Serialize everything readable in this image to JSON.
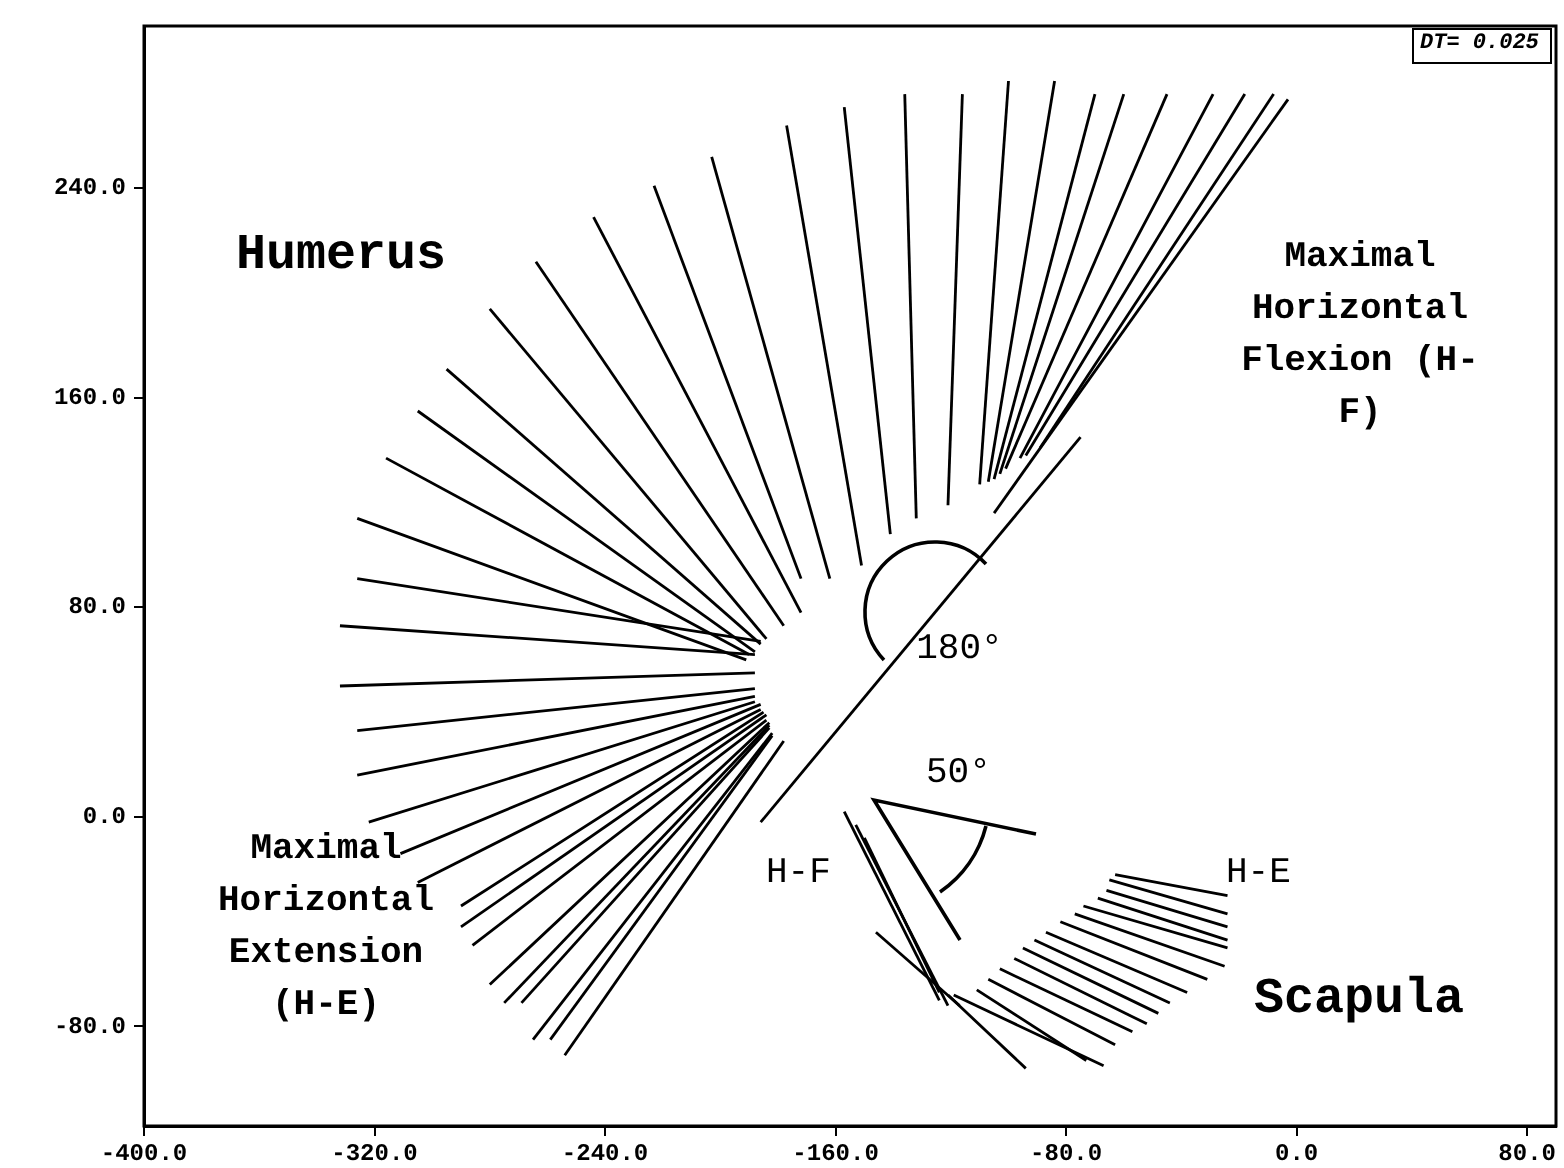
{
  "chart_data": {
    "type": "line",
    "marker": "none",
    "xlim": [
      -400,
      90
    ],
    "ylim": [
      -118,
      302
    ],
    "xticks": [
      {
        "value": -400,
        "label": "-400.0"
      },
      {
        "value": -320,
        "label": "-320.0"
      },
      {
        "value": -240,
        "label": "-240.0"
      },
      {
        "value": -160,
        "label": "-160.0"
      },
      {
        "value": -80,
        "label": "-80.0"
      },
      {
        "value": 0,
        "label": "0.0"
      },
      {
        "value": 80,
        "label": "80.0"
      }
    ],
    "yticks": [
      {
        "value": -80,
        "label": "-80.0"
      },
      {
        "value": 0,
        "label": "0.0"
      },
      {
        "value": 80,
        "label": "80.0"
      },
      {
        "value": 160,
        "label": "160.0"
      },
      {
        "value": 240,
        "label": "240.0"
      }
    ],
    "annotations": [
      "Humerus",
      "Maximal Horizontal Flexion (H-F)",
      "Maximal Horizontal Extension (H-E)",
      {
        "text": "180°",
        "x": -132,
        "y": 64
      },
      "50°",
      "H-F",
      "H-E",
      "Scapula",
      "DT= 0.025"
    ],
    "series": [
      {
        "x": [
          -3,
          -105
        ],
        "values": [
          274,
          116
        ],
        "color": "#000000"
      },
      {
        "x": [
          -8,
          -89
        ],
        "values": [
          276,
          141
        ],
        "color": "#000000"
      },
      {
        "x": [
          -18,
          -94
        ],
        "values": [
          276,
          138
        ],
        "color": "#000000"
      },
      {
        "x": [
          -29,
          -96
        ],
        "values": [
          276,
          137
        ],
        "color": "#000000"
      },
      {
        "x": [
          -45,
          -101
        ],
        "values": [
          276,
          133
        ],
        "color": "#000000"
      },
      {
        "x": [
          -60,
          -103
        ],
        "values": [
          276,
          131
        ],
        "color": "#000000"
      },
      {
        "x": [
          -70,
          -105
        ],
        "values": [
          276,
          129
        ],
        "color": "#000000"
      },
      {
        "x": [
          -84,
          -107
        ],
        "values": [
          281,
          128
        ],
        "color": "#000000"
      },
      {
        "x": [
          -100,
          -110
        ],
        "values": [
          281,
          127
        ],
        "color": "#000000"
      },
      {
        "x": [
          -116,
          -121
        ],
        "values": [
          276,
          119
        ],
        "color": "#000000"
      },
      {
        "x": [
          -136,
          -132
        ],
        "values": [
          276,
          114
        ],
        "color": "#000000"
      },
      {
        "x": [
          -157,
          -141
        ],
        "values": [
          271,
          108
        ],
        "color": "#000000"
      },
      {
        "x": [
          -177,
          -151
        ],
        "values": [
          264,
          96
        ],
        "color": "#000000"
      },
      {
        "x": [
          -203,
          -162
        ],
        "values": [
          252,
          91
        ],
        "color": "#000000"
      },
      {
        "x": [
          -223,
          -172
        ],
        "values": [
          241,
          91
        ],
        "color": "#000000"
      },
      {
        "x": [
          -244,
          -172
        ],
        "values": [
          229,
          78
        ],
        "color": "#000000"
      },
      {
        "x": [
          -264,
          -178
        ],
        "values": [
          212,
          73
        ],
        "color": "#000000"
      },
      {
        "x": [
          -280,
          -184
        ],
        "values": [
          194,
          68
        ],
        "color": "#000000"
      },
      {
        "x": [
          -295,
          -186
        ],
        "values": [
          171,
          66
        ],
        "color": "#000000"
      },
      {
        "x": [
          -305,
          -188
        ],
        "values": [
          155,
          63
        ],
        "color": "#000000"
      },
      {
        "x": [
          -316,
          -190
        ],
        "values": [
          137,
          62
        ],
        "color": "#000000"
      },
      {
        "x": [
          -326,
          -191
        ],
        "values": [
          114,
          60
        ],
        "color": "#000000"
      },
      {
        "x": [
          -326,
          -186
        ],
        "values": [
          91,
          67
        ],
        "color": "#000000"
      },
      {
        "x": [
          -332,
          -188
        ],
        "values": [
          73,
          62
        ],
        "color": "#000000"
      },
      {
        "x": [
          -332,
          -188
        ],
        "values": [
          50,
          55
        ],
        "color": "#000000"
      },
      {
        "x": [
          -326,
          -188
        ],
        "values": [
          33,
          49
        ],
        "color": "#000000"
      },
      {
        "x": [
          -326,
          -188
        ],
        "values": [
          16,
          46
        ],
        "color": "#000000"
      },
      {
        "x": [
          -322,
          -188
        ],
        "values": [
          -2,
          44
        ],
        "color": "#000000"
      },
      {
        "x": [
          -311,
          -186
        ],
        "values": [
          -14,
          43
        ],
        "color": "#000000"
      },
      {
        "x": [
          -305,
          -186
        ],
        "values": [
          -25,
          41
        ],
        "color": "#000000"
      },
      {
        "x": [
          -290,
          -185
        ],
        "values": [
          -34,
          40
        ],
        "color": "#000000"
      },
      {
        "x": [
          -290,
          -184
        ],
        "values": [
          -42,
          39
        ],
        "color": "#000000"
      },
      {
        "x": [
          -286,
          -184
        ],
        "values": [
          -49,
          37
        ],
        "color": "#000000"
      },
      {
        "x": [
          -280,
          -183
        ],
        "values": [
          -64,
          36
        ],
        "color": "#000000"
      },
      {
        "x": [
          -275,
          -183
        ],
        "values": [
          -71,
          35
        ],
        "color": "#000000"
      },
      {
        "x": [
          -269,
          -183
        ],
        "values": [
          -71,
          34
        ],
        "color": "#000000"
      },
      {
        "x": [
          -265,
          -182
        ],
        "values": [
          -85,
          32
        ],
        "color": "#000000"
      },
      {
        "x": [
          -259,
          -182
        ],
        "values": [
          -85,
          31
        ],
        "color": "#000000"
      },
      {
        "x": [
          -254,
          -178
        ],
        "values": [
          -91,
          29
        ],
        "color": "#000000"
      },
      {
        "x": [
          -75,
          -186
        ],
        "values": [
          145,
          -2
        ],
        "color": "#000000"
      },
      {
        "x": [
          -157,
          -124
        ],
        "values": [
          2,
          -70
        ],
        "color": "#000000"
      },
      {
        "x": [
          -153,
          -121
        ],
        "values": [
          -3,
          -72
        ],
        "color": "#000000"
      },
      {
        "x": [
          -150,
          -124
        ],
        "values": [
          -8,
          -67
        ],
        "color": "#000000"
      },
      {
        "x": [
          -146,
          -117
        ],
        "values": [
          -44,
          -72
        ],
        "color": "#000000"
      },
      {
        "x": [
          -121,
          -94
        ],
        "values": [
          -68,
          -96
        ],
        "color": "#000000"
      },
      {
        "x": [
          -119,
          -67
        ],
        "values": [
          -68,
          -95
        ],
        "color": "#000000"
      },
      {
        "x": [
          -111,
          -73
        ],
        "values": [
          -66,
          -93
        ],
        "color": "#000000"
      },
      {
        "x": [
          -107,
          -63
        ],
        "values": [
          -62,
          -87
        ],
        "color": "#000000"
      },
      {
        "x": [
          -103,
          -57
        ],
        "values": [
          -58,
          -82
        ],
        "color": "#000000"
      },
      {
        "x": [
          -98,
          -52
        ],
        "values": [
          -54,
          -79
        ],
        "color": "#000000"
      },
      {
        "x": [
          -95,
          -48
        ],
        "values": [
          -50,
          -75
        ],
        "color": "#000000"
      },
      {
        "x": [
          -91,
          -44
        ],
        "values": [
          -47,
          -71
        ],
        "color": "#000000"
      },
      {
        "x": [
          -87,
          -38
        ],
        "values": [
          -44,
          -67
        ],
        "color": "#000000"
      },
      {
        "x": [
          -82,
          -31
        ],
        "values": [
          -40,
          -62
        ],
        "color": "#000000"
      },
      {
        "x": [
          -77,
          -25
        ],
        "values": [
          -37,
          -57
        ],
        "color": "#000000"
      },
      {
        "x": [
          -74,
          -24
        ],
        "values": [
          -34,
          -50
        ],
        "color": "#000000"
      },
      {
        "x": [
          -69,
          -24
        ],
        "values": [
          -31,
          -47
        ],
        "color": "#000000"
      },
      {
        "x": [
          -66,
          -24
        ],
        "values": [
          -28,
          -42
        ],
        "color": "#000000"
      },
      {
        "x": [
          -65,
          -24
        ],
        "values": [
          -24,
          -37
        ],
        "color": "#000000"
      },
      {
        "x": [
          -63,
          -24
        ],
        "values": [
          -22,
          -30
        ],
        "color": "#000000"
      }
    ]
  }
}
